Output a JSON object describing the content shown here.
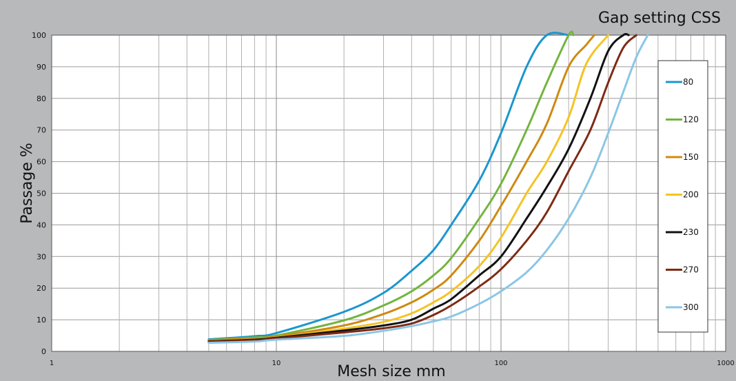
{
  "chart_data": {
    "type": "line",
    "title": "Gap setting CSS",
    "xlabel": "Mesh size mm",
    "ylabel": "Passage %",
    "xscale": "log",
    "xlim": [
      1,
      1000
    ],
    "ylim": [
      0,
      100
    ],
    "xticks": [
      1,
      10,
      100,
      1000
    ],
    "yticks": [
      0,
      10,
      20,
      30,
      40,
      50,
      60,
      70,
      80,
      90,
      100
    ],
    "grid": true,
    "legend_position": "right",
    "series": [
      {
        "name": "80",
        "color": "#1a96cf",
        "points": [
          [
            5,
            3.8
          ],
          [
            8,
            4.8
          ],
          [
            10,
            5.8
          ],
          [
            20,
            12.5
          ],
          [
            30,
            18.5
          ],
          [
            40,
            25.5
          ],
          [
            50,
            32
          ],
          [
            60,
            40
          ],
          [
            80,
            54
          ],
          [
            100,
            69
          ],
          [
            130,
            90
          ],
          [
            160,
            100
          ],
          [
            200,
            100
          ]
        ]
      },
      {
        "name": "120",
        "color": "#73b43e",
        "points": [
          [
            5,
            3.6
          ],
          [
            8,
            4.4
          ],
          [
            10,
            5
          ],
          [
            20,
            9.8
          ],
          [
            30,
            14.5
          ],
          [
            40,
            19
          ],
          [
            50,
            24
          ],
          [
            60,
            29.5
          ],
          [
            80,
            42
          ],
          [
            100,
            53
          ],
          [
            130,
            70
          ],
          [
            160,
            85
          ],
          [
            200,
            100
          ],
          [
            210,
            100
          ]
        ]
      },
      {
        "name": "150",
        "color": "#cd8a11",
        "points": [
          [
            5,
            3.5
          ],
          [
            8,
            4.1
          ],
          [
            10,
            4.7
          ],
          [
            20,
            8.2
          ],
          [
            30,
            11.8
          ],
          [
            40,
            15.5
          ],
          [
            50,
            19.5
          ],
          [
            60,
            24
          ],
          [
            80,
            35
          ],
          [
            100,
            46
          ],
          [
            130,
            60
          ],
          [
            160,
            72
          ],
          [
            200,
            90
          ],
          [
            240,
            97
          ],
          [
            260,
            100
          ]
        ]
      },
      {
        "name": "200",
        "color": "#f5c324",
        "points": [
          [
            5,
            3.3
          ],
          [
            8,
            3.8
          ],
          [
            10,
            4.4
          ],
          [
            20,
            7.2
          ],
          [
            30,
            9.3
          ],
          [
            40,
            12
          ],
          [
            50,
            15.5
          ],
          [
            60,
            19
          ],
          [
            80,
            27
          ],
          [
            100,
            36
          ],
          [
            130,
            50
          ],
          [
            160,
            60
          ],
          [
            200,
            74
          ],
          [
            240,
            91
          ],
          [
            300,
            100
          ]
        ]
      },
      {
        "name": "230",
        "color": "#121212",
        "points": [
          [
            5,
            3.2
          ],
          [
            8,
            3.7
          ],
          [
            10,
            4.3
          ],
          [
            20,
            6.6
          ],
          [
            30,
            8.2
          ],
          [
            40,
            10
          ],
          [
            50,
            13.5
          ],
          [
            60,
            16.5
          ],
          [
            80,
            24
          ],
          [
            100,
            30
          ],
          [
            130,
            42
          ],
          [
            160,
            52
          ],
          [
            200,
            64
          ],
          [
            250,
            80
          ],
          [
            300,
            95
          ],
          [
            350,
            100
          ],
          [
            370,
            100
          ]
        ]
      },
      {
        "name": "270",
        "color": "#7e2a14",
        "points": [
          [
            5,
            3.1
          ],
          [
            8,
            3.5
          ],
          [
            10,
            4.1
          ],
          [
            20,
            6
          ],
          [
            30,
            7.3
          ],
          [
            40,
            8.8
          ],
          [
            50,
            11.5
          ],
          [
            60,
            14.5
          ],
          [
            80,
            20.5
          ],
          [
            100,
            26
          ],
          [
            130,
            35
          ],
          [
            160,
            44
          ],
          [
            200,
            57
          ],
          [
            250,
            70
          ],
          [
            300,
            85
          ],
          [
            350,
            96
          ],
          [
            400,
            100
          ]
        ]
      },
      {
        "name": "300",
        "color": "#8ac6e6",
        "points": [
          [
            5,
            2.7
          ],
          [
            8,
            3.1
          ],
          [
            10,
            3.7
          ],
          [
            20,
            4.9
          ],
          [
            30,
            6.5
          ],
          [
            40,
            8
          ],
          [
            50,
            9.5
          ],
          [
            60,
            11
          ],
          [
            80,
            15
          ],
          [
            100,
            19
          ],
          [
            130,
            25
          ],
          [
            160,
            32
          ],
          [
            200,
            42
          ],
          [
            250,
            55
          ],
          [
            300,
            69
          ],
          [
            350,
            82
          ],
          [
            400,
            93
          ],
          [
            450,
            100
          ]
        ]
      }
    ]
  }
}
